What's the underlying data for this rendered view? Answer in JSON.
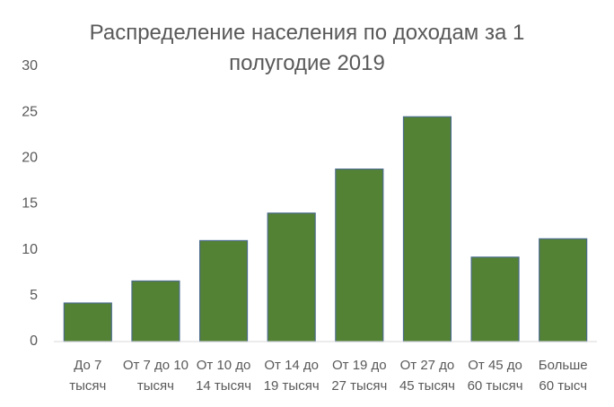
{
  "chart_data": {
    "type": "bar",
    "title": "Распределение населения по доходам за 1 полугодие 2019",
    "categories": [
      "До 7 тысяч",
      "От 7 до 10 тысяч",
      "От 10 до 14 тысяч",
      "От 14 до 19 тысяч",
      "От 19 до 27 тысяч",
      "От 27 до 45 тысяч",
      "От 45 до 60 тысяч",
      "Больше 60 тысч"
    ],
    "values": [
      4.2,
      6.6,
      11.0,
      14.0,
      18.8,
      24.5,
      9.2,
      11.2
    ],
    "color": "#548235",
    "ylim": [
      0,
      30
    ],
    "yticks": [
      0,
      5,
      10,
      15,
      20,
      25,
      30
    ],
    "grid": false
  }
}
